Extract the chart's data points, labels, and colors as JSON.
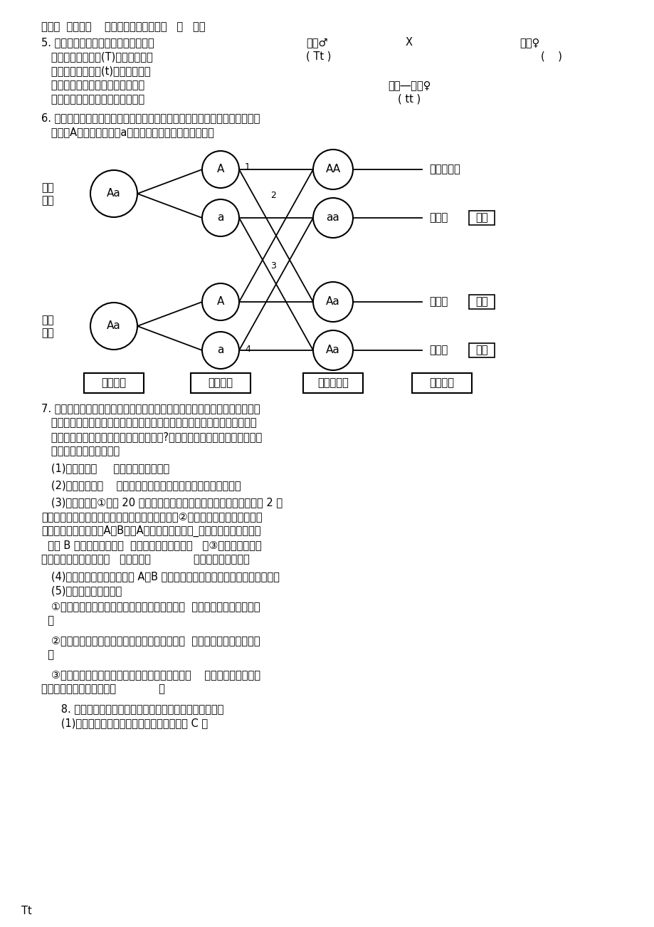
{
  "bg_color": "#ffffff",
  "line1": "一般为  变态发育    。幼年发育时期生活在   水   里。",
  "q5_text1": "5. 已知面部有无酒窝是一对相对性状，",
  "q5_text2": "   控制有酒窝的基因(T)是显性基因，",
  "q5_text3": "   控制无酒窝的基因(t)是隐性基因，",
  "q5_text4": "   玲玲的父母均有酒窝，而玲玲却无",
  "q5_text5": "   酒窝，请写出他们家的遗传图解。",
  "q5_father": "父亲♂",
  "q5_x": "X",
  "q5_mother": "母亲♀",
  "q5_tt_father": "( Tt )",
  "q5_daughter_label": "女儿―玲玲♀",
  "q5_tt_daughter": "( tt )",
  "q5_paren_mother": "(    )",
  "q6_text1": "6. 人类的白化病是由位于常染色体上的隐性基因所控制的一种遗传病。设正常",
  "q6_text2": "   基因为A，白化病基因为a，请完成下列白化病遗传图解。",
  "diagram_father_label_1": "父亲",
  "diagram_father_label_2": "正常",
  "diagram_mother_label_1": "母亲",
  "diagram_mother_label_2": "正常",
  "label_fumu": "父母基因",
  "label_shengzhi": "生殖细胞",
  "label_shoujing": "受精卵基因",
  "label_nvbiao": "了女表现",
  "node_father_big": "Aa",
  "node_mother_big": "Aa",
  "node_right_AA": "AA",
  "node_right_aa": "aa",
  "node_right_Aa3": "Aa",
  "node_right_Aa4": "Aa",
  "result1": "子表现正常",
  "result2_prefix": "子表现",
  "result2_box": "患病",
  "result3_prefix": "子表现",
  "result3_box": "正常",
  "result4_prefix": "子表现",
  "result4_box": "正常",
  "num1": "1",
  "num2": "2",
  "num3": "3",
  "num4": "4",
  "q7_text1": "7. 紫背天葵是一种保健型蔬菜，菜农常采用杆插的方式对其进行繁殖。对杆插",
  "q7_text2": "   材料处理的方法不同，将影响杆插的成活率。在处理杆插的茎段时，在茎段",
  "q7_text3": "   下方是切成水平切口，还是切成斜向切口?请你设计一个实验，探究哪种处理",
  "q7_text4": "   方法更容易使茎段成活。",
  "q7_1": "   (1)实验变量是     茎段下方的切口方向                    ",
  "q7_2": "   (2)作出的假设是    茎段下方的切口斜向（或水平）的更容易成活      ",
  "q7_3": "   (3)实验步骤：①准备 20 支生长良好的紫背天葵枝条，将它们剪成保留 2 个",
  "q7_4": "节的茎段，按要求处理茎段叶片和茎段上方切口。②将以上准备的茎段分成均等",
  "q7_5": "的两份，分别标上标签A与B。将A组的茎段下方切成_水平切口（斜向切口）",
  "q7_6": "  ，将 B 组的茎段下方切成  斜向切口（水平切口）   。③将两组的茎段按",
  "q7_7": "要求插入沙性土壤中，在   相同且适宜             的环境条件下培育。",
  "q7_8": "   (4)观察记录：每天定时观察 A、B 两组的茎段看哪组先长出新叶，做好记录。",
  "q7_9": "   (5)分析结果得出结论：",
  "q7_10": "   ①如果斜向切口组先于水平切口组长出新叶，则  斜向切口的茎段容易成活",
  "q7_11": "  ；",
  "q7_12": "   ②如果水平切口组先于斜向切口组长出新叶，则  水平切口的茎段容易成活",
  "q7_13": "  ；",
  "q7_14": "   ③如果水平切口组和斜向切口组同时长出新叶，则    茎段切口方向是水平",
  "q7_15": "还是斜向不影响杆插的成活             。",
  "q8_text": "      8. 右图是跨虫发育过程不同时期的形态图。请据图回答：",
  "q8_1": "      (1)从图中可知，跨虫的发育过程和方式是（ C ）",
  "tt_label": "Tt"
}
